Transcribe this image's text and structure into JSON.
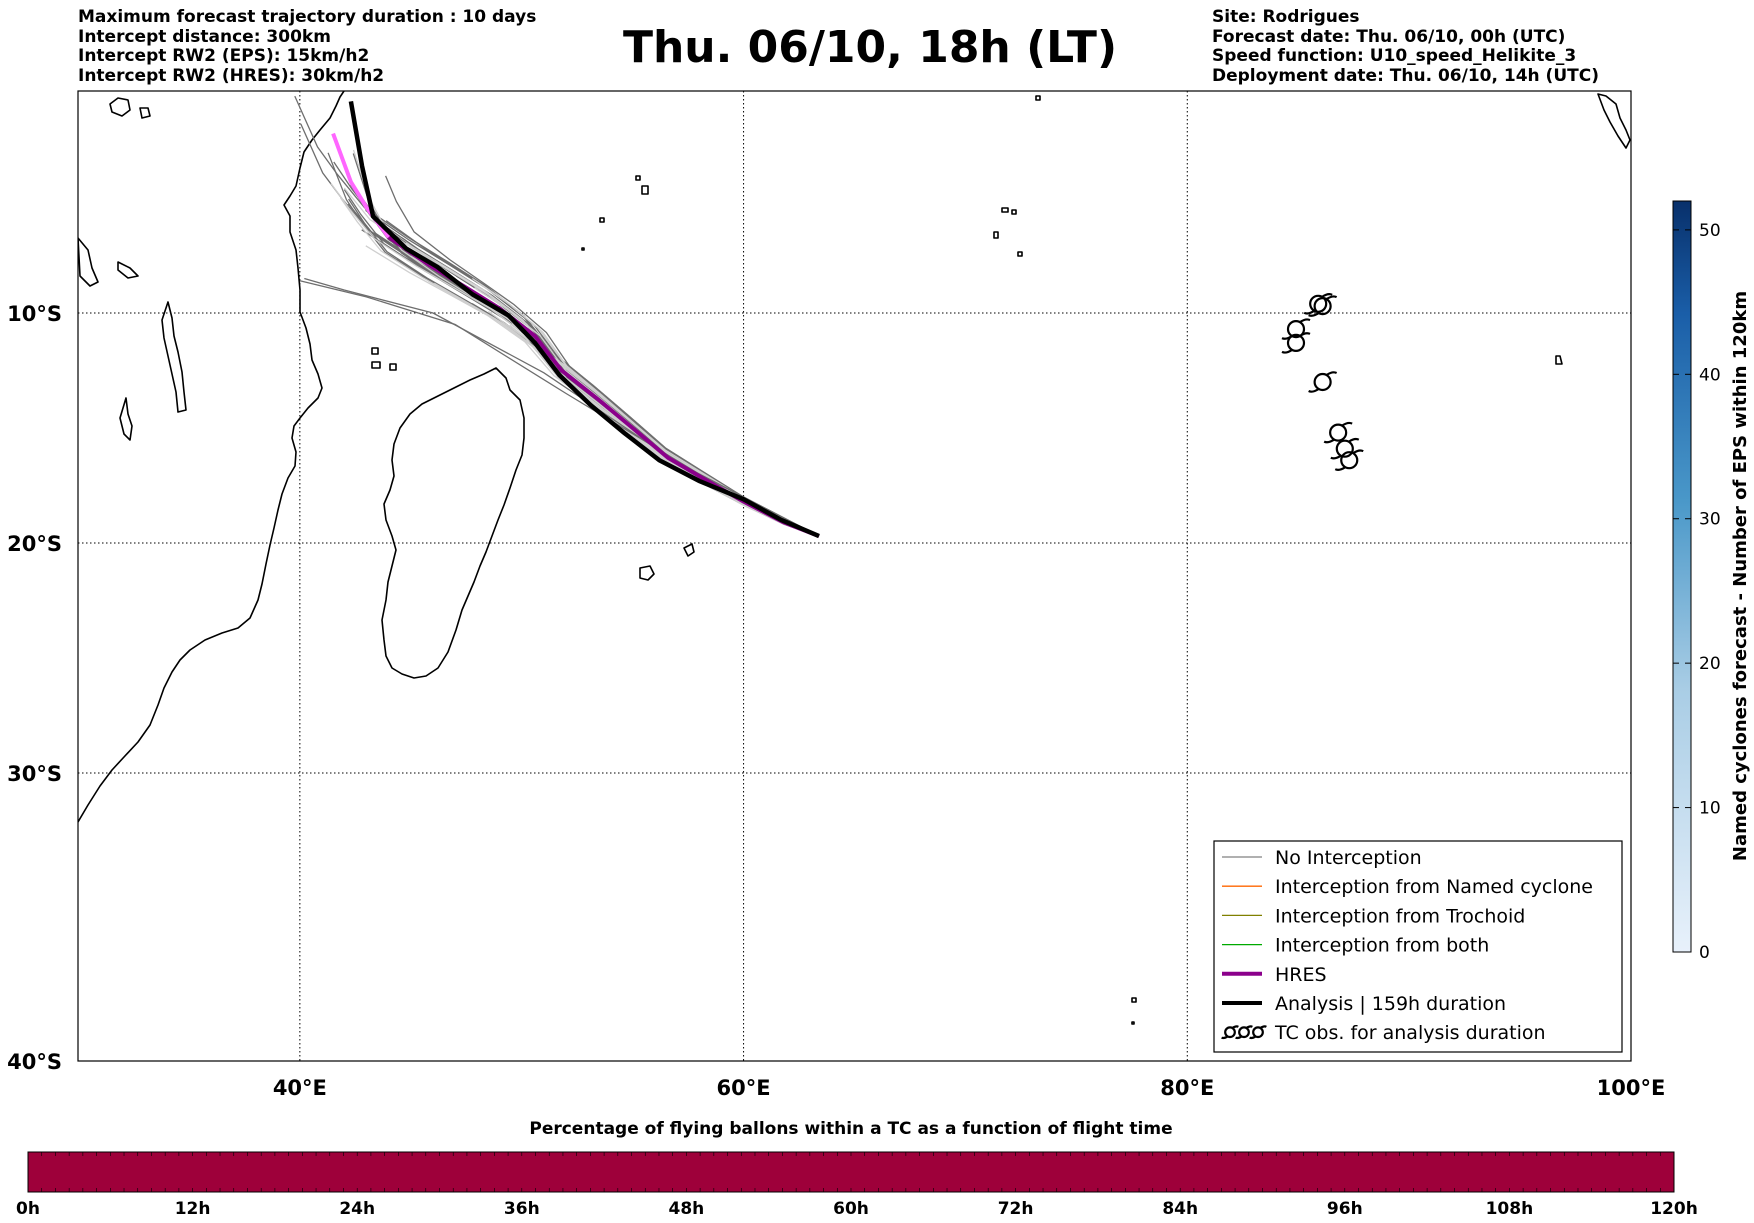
{
  "header": {
    "left_lines": [
      "Maximum forecast trajectory duration : 10 days",
      "Intercept distance: 300km",
      "Intercept RW2 (EPS):  15km/h2",
      "Intercept RW2 (HRES): 30km/h2"
    ],
    "title": "Thu. 06/10, 18h (LT)",
    "right_lines": [
      "Site: Rodrigues",
      "Forecast date: Thu. 06/10, 00h (UTC)",
      "Speed function: U10_speed_Helikite_3",
      "Deployment date: Thu. 06/10, 14h (UTC)"
    ]
  },
  "map": {
    "lon_range": [
      30,
      100
    ],
    "lat_range": [
      -40,
      -0.5
    ],
    "lon_ticks": [
      {
        "value": 40,
        "label": "40°E"
      },
      {
        "value": 60,
        "label": "60°E"
      },
      {
        "value": 80,
        "label": "80°E"
      },
      {
        "value": 100,
        "label": "100°E"
      }
    ],
    "lat_ticks": [
      {
        "value": -10,
        "label": "10°S"
      },
      {
        "value": -20,
        "label": "20°S"
      },
      {
        "value": -30,
        "label": "30°S"
      },
      {
        "value": -40,
        "label": "40°S"
      }
    ],
    "grid": "dotted",
    "launch_site": {
      "lon": 63.4,
      "lat": -19.7
    },
    "hres_track": [
      [
        63.4,
        -19.7
      ],
      [
        61.8,
        -19.1
      ],
      [
        60.0,
        -18.2
      ],
      [
        58.2,
        -17.2
      ],
      [
        56.6,
        -16.3
      ],
      [
        55.0,
        -15.0
      ],
      [
        53.5,
        -13.8
      ],
      [
        51.8,
        -12.5
      ],
      [
        50.6,
        -11.0
      ],
      [
        49.0,
        -9.8
      ],
      [
        47.5,
        -8.9
      ],
      [
        45.8,
        -7.9
      ],
      [
        44.0,
        -6.7
      ],
      [
        43.0,
        -5.4
      ],
      [
        42.3,
        -4.3
      ],
      [
        41.5,
        -2.2
      ]
    ],
    "hres_colors": {
      "dark": "#8b008b",
      "light": "#ff66ff"
    },
    "analysis_track": [
      [
        63.4,
        -19.7
      ],
      [
        61.7,
        -19.0
      ],
      [
        60.0,
        -18.1
      ],
      [
        58.0,
        -17.3
      ],
      [
        56.2,
        -16.4
      ],
      [
        54.6,
        -15.2
      ],
      [
        53.1,
        -14.0
      ],
      [
        51.7,
        -12.7
      ],
      [
        50.6,
        -11.3
      ],
      [
        49.4,
        -10.1
      ],
      [
        47.8,
        -9.2
      ],
      [
        46.2,
        -8.0
      ],
      [
        44.8,
        -7.2
      ],
      [
        43.3,
        -5.8
      ],
      [
        42.8,
        -3.6
      ],
      [
        42.3,
        -0.8
      ]
    ],
    "analysis_duration_hours": 159,
    "tc_obs": [
      [
        84.9,
        -10.7
      ],
      [
        84.9,
        -11.3
      ],
      [
        85.9,
        -9.6
      ],
      [
        86.1,
        -9.7
      ],
      [
        86.1,
        -13.0
      ],
      [
        86.8,
        -15.2
      ],
      [
        87.1,
        -15.9
      ],
      [
        87.3,
        -16.4
      ]
    ],
    "colors": {
      "no_interception": "#808080",
      "named_cyclone": "#ff6600",
      "trochoid": "#808000",
      "both": "#00aa00",
      "hres": "#8b008b",
      "analysis": "#000000",
      "eps_light": "#c8c8c8"
    }
  },
  "legend": {
    "items": [
      {
        "label": "No Interception",
        "key": "no_interception"
      },
      {
        "label": "Interception from Named cyclone",
        "key": "named_cyclone"
      },
      {
        "label": "Interception from Trochoid",
        "key": "trochoid"
      },
      {
        "label": "Interception from both",
        "key": "both"
      },
      {
        "label": "HRES",
        "key": "hres"
      },
      {
        "label": "Analysis | 159h duration",
        "key": "analysis"
      },
      {
        "label": "TC obs. for analysis duration",
        "key": "tc_obs"
      }
    ]
  },
  "colorbar_right": {
    "label": "Named cyclones forecast - Number of EPS within 120km",
    "min": 0,
    "max": 52,
    "ticks": [
      0,
      10,
      20,
      30,
      40,
      50
    ],
    "colors": [
      "#e8f1fb",
      "#08306b"
    ]
  },
  "colorbar_bottom": {
    "title": "Percentage of flying ballons within a TC as a function of flight time",
    "tick_labels": [
      "0h",
      "12h",
      "24h",
      "36h",
      "48h",
      "60h",
      "72h",
      "84h",
      "96h",
      "108h",
      "120h"
    ],
    "color": "#9e003a"
  }
}
